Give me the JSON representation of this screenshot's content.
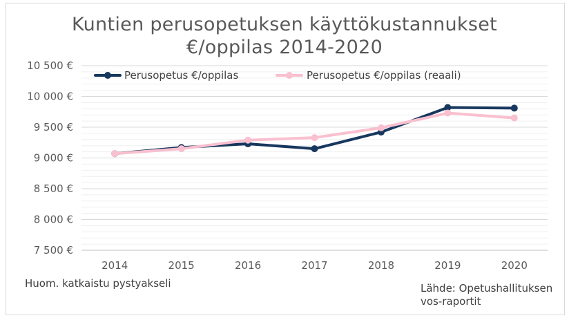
{
  "chart_data": {
    "type": "line",
    "title": "Kuntien perusopetuksen käyttökustannukset €/oppilas 2014-2020",
    "title_lines": [
      "Kuntien perusopetuksen käyttökustannukset",
      "€/oppilas 2014-2020"
    ],
    "categories": [
      "2014",
      "2015",
      "2016",
      "2017",
      "2018",
      "2019",
      "2020"
    ],
    "series": [
      {
        "name": "Perusopetus €/oppilas",
        "color": "#17375e",
        "values": [
          9070,
          9170,
          9230,
          9150,
          9420,
          9820,
          9810
        ]
      },
      {
        "name": "Perusopetus €/oppilas (reaali)",
        "color": "#f9c0cf",
        "values": [
          9070,
          9150,
          9290,
          9330,
          9490,
          9730,
          9650
        ]
      }
    ],
    "ylim": [
      7500,
      10500
    ],
    "yticks": [
      7500,
      8000,
      8500,
      9000,
      9500,
      10000,
      10500
    ],
    "ytick_labels": [
      "7 500 €",
      "8 000 €",
      "8 500 €",
      "9 000 €",
      "9 500 €",
      "10 000 €",
      "10 500 €"
    ],
    "grid": true,
    "legend_position": "top"
  },
  "notes": {
    "left": "Huom. katkaistu pystyakseli",
    "right_line1": "Lähde: Opetushallituksen",
    "right_line2": "vos-raportit"
  }
}
